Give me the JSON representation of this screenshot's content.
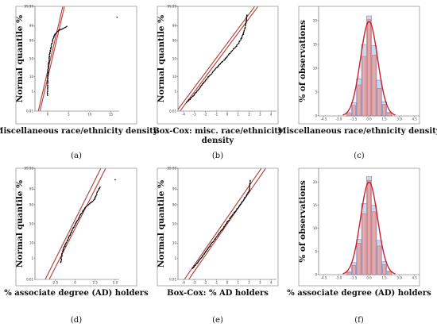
{
  "chart_data": [
    {
      "id": "a",
      "panel_label": "(a)",
      "type": "scatter",
      "subtype": "normal-probability",
      "xlabel_lines": [
        "Miscellaneous race/ethnicity density"
      ],
      "ylabel": "Normal quantile %",
      "x_ticks": [
        "0",
        "5",
        "10",
        "15"
      ],
      "xlim": [
        -3,
        17
      ],
      "y_ticks": [
        "0.01",
        "1",
        "10",
        "50",
        "90",
        "99",
        "99.99"
      ],
      "ylim_z": [
        -3.719,
        3.719
      ],
      "fit_line_color": "#b03a3a",
      "fit_lines": [
        {
          "x0": -2.2,
          "z0": -3.7,
          "x1": 3.6,
          "z1": 3.7
        },
        {
          "x0": -1.8,
          "z0": -3.7,
          "x1": 4.0,
          "z1": 3.7
        }
      ],
      "points": [
        [
          0,
          -2.6
        ],
        [
          0,
          -2.2
        ],
        [
          0.02,
          -1.8
        ],
        [
          0.05,
          -1.4
        ],
        [
          0.1,
          -1.0
        ],
        [
          0.15,
          -0.7
        ],
        [
          0.2,
          -0.45
        ],
        [
          0.3,
          -0.2
        ],
        [
          0.4,
          0.05
        ],
        [
          0.5,
          0.3
        ],
        [
          0.65,
          0.55
        ],
        [
          0.8,
          0.8
        ],
        [
          1.0,
          1.05
        ],
        [
          1.25,
          1.3
        ],
        [
          1.5,
          1.55
        ],
        [
          1.8,
          1.75
        ],
        [
          2.2,
          1.9
        ],
        [
          2.7,
          2.0
        ],
        [
          3.2,
          2.08
        ],
        [
          3.6,
          2.14
        ],
        [
          4.0,
          2.2
        ],
        [
          4.5,
          2.3
        ],
        [
          16.5,
          2.95
        ]
      ]
    },
    {
      "id": "b",
      "panel_label": "(b)",
      "type": "scatter",
      "subtype": "normal-probability",
      "xlabel_lines": [
        "Box-Cox: misc. race/ethnicity",
        "density"
      ],
      "ylabel": "Normal quantile %",
      "x_ticks": [
        "-4",
        "-3",
        "-2",
        "-1",
        "0",
        "1",
        "2",
        "3",
        "4"
      ],
      "xlim": [
        -4.5,
        4.5
      ],
      "y_ticks": [
        "0.01",
        "1",
        "10",
        "50",
        "90",
        "99",
        "99.99"
      ],
      "ylim_z": [
        -3.719,
        3.719
      ],
      "fit_line_color": "#b03a3a",
      "fit_lines": [
        {
          "x0": -4.6,
          "z0": -3.7,
          "x1": 2.5,
          "z1": 3.7
        },
        {
          "x0": -4.3,
          "z0": -3.7,
          "x1": 2.8,
          "z1": 3.7
        }
      ],
      "points": [
        [
          -3.7,
          -3.1
        ],
        [
          -3.0,
          -2.55
        ],
        [
          -2.5,
          -2.05
        ],
        [
          -2.0,
          -1.55
        ],
        [
          -1.5,
          -1.1
        ],
        [
          -1.0,
          -0.65
        ],
        [
          -0.5,
          -0.25
        ],
        [
          0.0,
          0.15
        ],
        [
          0.5,
          0.6
        ],
        [
          1.0,
          1.05
        ],
        [
          1.3,
          1.45
        ],
        [
          1.5,
          1.85
        ],
        [
          1.65,
          2.3
        ],
        [
          1.75,
          2.75
        ],
        [
          1.8,
          3.1
        ]
      ]
    },
    {
      "id": "c",
      "panel_label": "(c)",
      "type": "bar",
      "subtype": "histogram",
      "xlabel_lines": [
        "Miscellaneous race/ethnicity density"
      ],
      "ylabel": "% of observations",
      "x_ticks": [
        "-4.5",
        "-3.0",
        "-1.5",
        "0.0",
        "1.5",
        "3.0",
        "4.5"
      ],
      "xlim": [
        -5,
        5
      ],
      "y_ticks": [
        "0",
        "5",
        "10",
        "15",
        "20"
      ],
      "ylim": [
        0,
        23
      ],
      "bin_edges": [
        -2.25,
        -1.75,
        -1.25,
        -0.75,
        -0.25,
        0.25,
        0.75,
        1.25,
        1.75,
        2.25
      ],
      "bars_blue": [
        0.7,
        2.8,
        7.8,
        15.0,
        21.0,
        14.8,
        7.5,
        3.0,
        0.8
      ],
      "bars_pink": [
        0.5,
        2.2,
        6.5,
        12.5,
        20.2,
        12.8,
        5.8,
        2.4,
        0.6
      ],
      "curve_peak": 19.8,
      "curve_sd": 0.85,
      "curve_color": "#cc1f2a"
    },
    {
      "id": "d",
      "panel_label": "(d)",
      "type": "scatter",
      "subtype": "normal-probability",
      "xlabel_lines": [
        "% associate degree (AD) holders"
      ],
      "ylabel": "Normal quantile %",
      "x_ticks": [
        "-2.5",
        "0",
        "2.5",
        "5.0"
      ],
      "xlim": [
        -5,
        5.5
      ],
      "y_ticks": [
        "0.01",
        "1",
        "10",
        "50",
        "90",
        "99",
        "99.99"
      ],
      "ylim_z": [
        -3.719,
        3.719
      ],
      "fit_line_color": "#b03a3a",
      "fit_lines": [
        {
          "x0": -3.7,
          "z0": -3.7,
          "x1": 3.2,
          "z1": 3.7
        },
        {
          "x0": -3.2,
          "z0": -3.7,
          "x1": 3.8,
          "z1": 3.7
        }
      ],
      "points": [
        [
          -1.75,
          -2.6
        ],
        [
          -1.7,
          -2.25
        ],
        [
          -1.6,
          -1.95
        ],
        [
          -1.4,
          -1.6
        ],
        [
          -1.0,
          -1.15
        ],
        [
          -0.6,
          -0.7
        ],
        [
          -0.2,
          -0.25
        ],
        [
          0.3,
          0.25
        ],
        [
          0.8,
          0.7
        ],
        [
          1.3,
          1.1
        ],
        [
          1.8,
          1.35
        ],
        [
          2.3,
          1.55
        ],
        [
          2.6,
          1.85
        ],
        [
          2.8,
          2.15
        ],
        [
          3.1,
          2.45
        ],
        [
          5.0,
          2.95
        ]
      ]
    },
    {
      "id": "e",
      "panel_label": "(e)",
      "type": "scatter",
      "subtype": "normal-probability",
      "xlabel_lines": [
        "Box-Cox: % AD holders"
      ],
      "ylabel": "Normal quantile %",
      "x_ticks": [
        "-4",
        "-3",
        "-2",
        "-1",
        "0",
        "1",
        "2",
        "3",
        "4"
      ],
      "xlim": [
        -4.5,
        4.5
      ],
      "y_ticks": [
        "0.01",
        "1",
        "10",
        "50",
        "90",
        "99",
        "99.99"
      ],
      "ylim_z": [
        -3.719,
        3.719
      ],
      "fit_line_color": "#b03a3a",
      "fit_lines": [
        {
          "x0": -3.9,
          "z0": -3.7,
          "x1": 3.1,
          "z1": 3.7
        },
        {
          "x0": -3.5,
          "z0": -3.7,
          "x1": 3.5,
          "z1": 3.7
        }
      ],
      "points": [
        [
          -3.2,
          -3.0
        ],
        [
          -2.6,
          -2.5
        ],
        [
          -2.1,
          -2.0
        ],
        [
          -1.6,
          -1.5
        ],
        [
          -1.1,
          -1.0
        ],
        [
          -0.6,
          -0.5
        ],
        [
          -0.1,
          0.0
        ],
        [
          0.4,
          0.5
        ],
        [
          0.9,
          1.0
        ],
        [
          1.4,
          1.5
        ],
        [
          1.8,
          1.95
        ],
        [
          2.0,
          2.2
        ],
        [
          2.05,
          2.45
        ],
        [
          2.05,
          2.7
        ],
        [
          2.1,
          2.9
        ]
      ]
    },
    {
      "id": "f",
      "panel_label": "(f)",
      "type": "bar",
      "subtype": "histogram",
      "xlabel_lines": [
        "% associate degree (AD) holders"
      ],
      "ylabel": "% of observations",
      "x_ticks": [
        "-4.5",
        "-3.0",
        "-1.5",
        "0.0",
        "1.5",
        "3.0",
        "4.5"
      ],
      "xlim": [
        -5,
        5
      ],
      "y_ticks": [
        "0",
        "5",
        "10",
        "15",
        "20"
      ],
      "ylim": [
        0,
        23
      ],
      "bin_edges": [
        -2.25,
        -1.75,
        -1.25,
        -0.75,
        -0.25,
        0.25,
        0.75,
        1.25,
        1.75,
        2.25
      ],
      "bars_blue": [
        0.7,
        2.6,
        7.6,
        15.4,
        21.2,
        15.0,
        7.4,
        2.8,
        0.8
      ],
      "bars_pink": [
        0.5,
        2.0,
        6.8,
        13.2,
        20.4,
        13.6,
        6.2,
        2.2,
        0.6
      ],
      "curve_peak": 20.0,
      "curve_sd": 0.85,
      "curve_color": "#cc1f2a"
    }
  ]
}
